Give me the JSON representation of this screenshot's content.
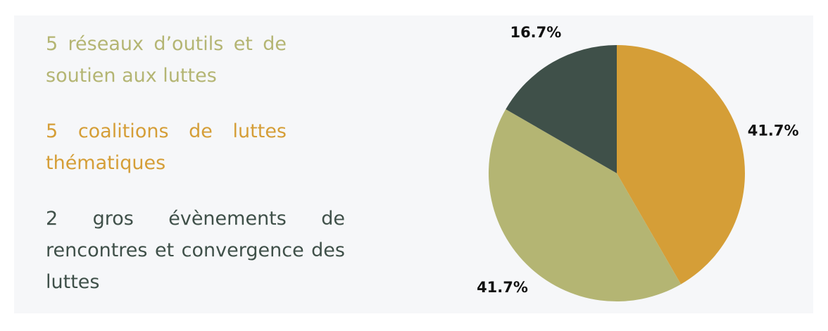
{
  "chart_data": {
    "type": "pie",
    "categories": [
      "5 coalitions de luttes thématiques",
      "5 réseaux d’outils et de soutien aux luttes",
      "2 gros évènements de rencontres et convergence des luttes"
    ],
    "values": [
      41.7,
      41.7,
      16.7
    ],
    "value_labels": [
      "41.7%",
      "41.7%",
      "16.7%"
    ],
    "colors": [
      "#d59e37",
      "#b4b573",
      "#3f5049"
    ]
  }
}
